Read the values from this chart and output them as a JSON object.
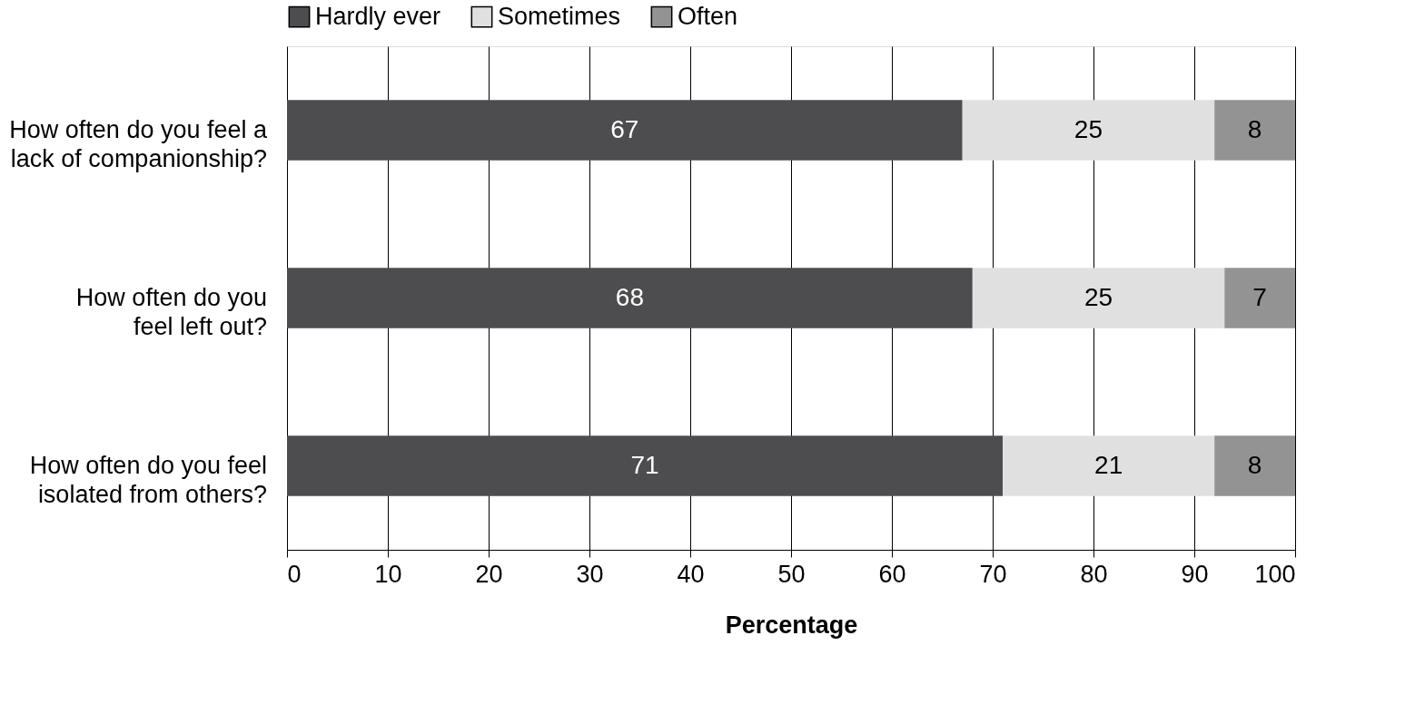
{
  "chart_data": {
    "type": "bar",
    "orientation": "horizontal",
    "stacked": true,
    "categories": [
      "How often do you feel a lack of companionship?",
      "How often do you feel left out?",
      "How often do you feel isolated from others?"
    ],
    "series": [
      {
        "name": "Hardly ever",
        "color": "#4d4d4f",
        "values": [
          67,
          68,
          71
        ]
      },
      {
        "name": "Sometimes",
        "color": "#e0e0e0",
        "values": [
          25,
          25,
          21
        ]
      },
      {
        "name": "Often",
        "color": "#939393",
        "values": [
          8,
          7,
          8
        ]
      }
    ],
    "xlabel": "Percentage",
    "xlim": [
      0,
      100
    ],
    "xticks": [
      0,
      10,
      20,
      30,
      40,
      50,
      60,
      70,
      80,
      90,
      100
    ],
    "grid": "x",
    "legend": "top",
    "data_labels": true
  }
}
